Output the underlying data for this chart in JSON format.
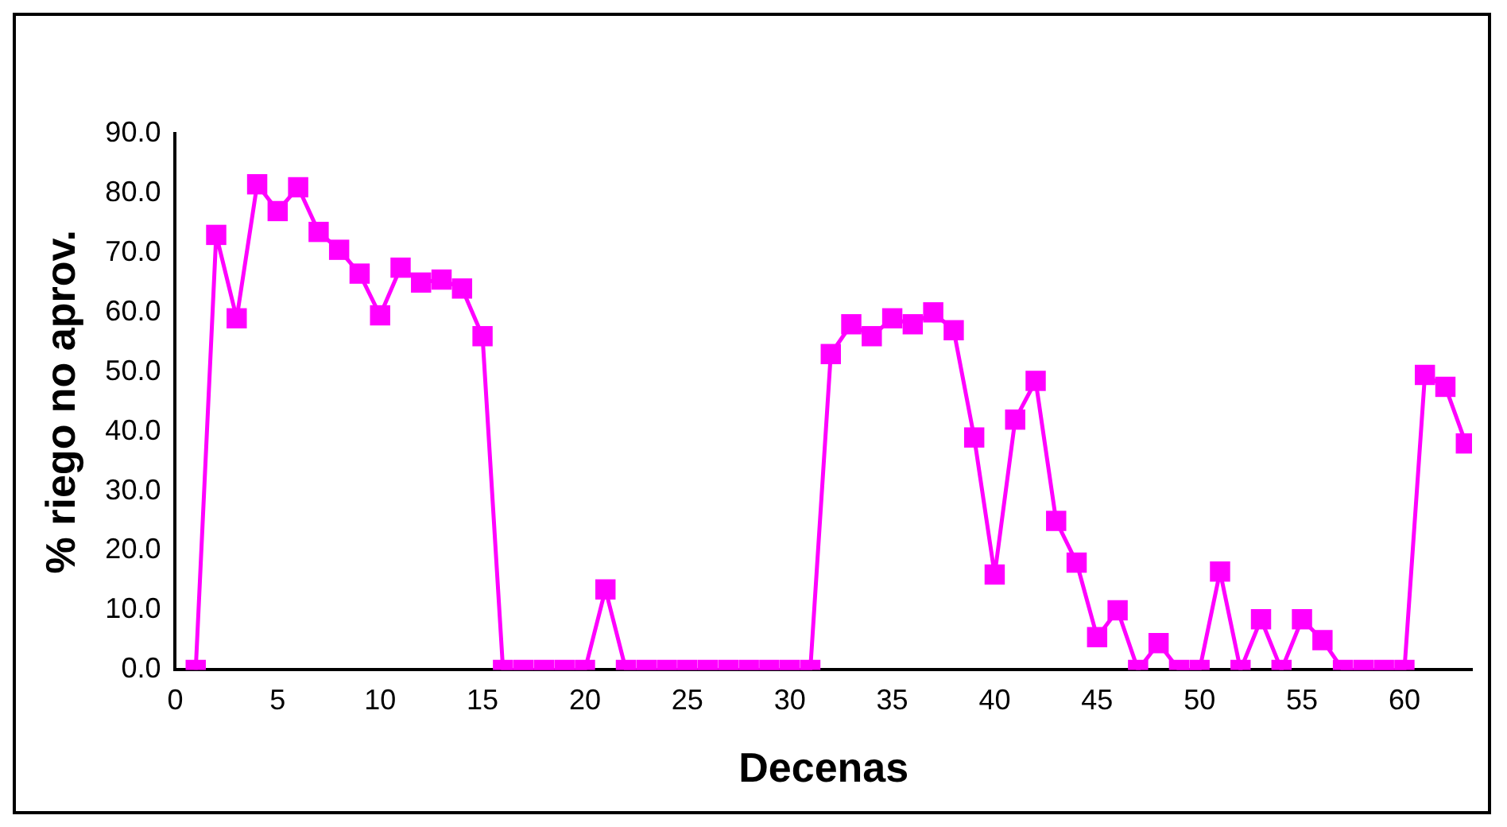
{
  "chart_data": {
    "type": "line",
    "xlabel": "Decenas",
    "ylabel": "% riego no aprov.",
    "x": [
      1,
      2,
      3,
      4,
      5,
      6,
      7,
      8,
      9,
      10,
      11,
      12,
      13,
      14,
      15,
      16,
      17,
      18,
      19,
      20,
      21,
      22,
      23,
      24,
      25,
      26,
      27,
      28,
      29,
      30,
      31,
      32,
      33,
      34,
      35,
      36,
      37,
      38,
      39,
      40,
      41,
      42,
      43,
      44,
      45,
      46,
      47,
      48,
      49,
      50,
      51,
      52,
      53,
      54,
      55,
      56,
      57,
      58,
      59,
      60,
      61,
      62,
      63
    ],
    "series": [
      {
        "color": "#ff00ff",
        "values": [
          0,
          73,
          59,
          81.5,
          77,
          81,
          73.5,
          70.5,
          66.5,
          59.5,
          67.5,
          65,
          65.5,
          64,
          56,
          0,
          0,
          0,
          0,
          0,
          13.5,
          0,
          0,
          0,
          0,
          0,
          0,
          0,
          0,
          0,
          0,
          53,
          58,
          56,
          59,
          58,
          60,
          57,
          39,
          16,
          42,
          48.5,
          25,
          18,
          5.5,
          10,
          0,
          4.5,
          0,
          0,
          16.5,
          0,
          8.5,
          0,
          8.5,
          5,
          0,
          0,
          0,
          0,
          49.5,
          47.5,
          38
        ]
      }
    ],
    "xlim": [
      0,
      63.3
    ],
    "xticks": [
      0,
      5,
      10,
      15,
      20,
      25,
      30,
      35,
      40,
      45,
      50,
      55,
      60
    ],
    "ylim": [
      0,
      90
    ],
    "yticks": [
      {
        "value": 0,
        "label": "0.0"
      },
      {
        "value": 10,
        "label": "10.0"
      },
      {
        "value": 20,
        "label": "20.0"
      },
      {
        "value": 30,
        "label": "30.0"
      },
      {
        "value": 40,
        "label": "40.0"
      },
      {
        "value": 50,
        "label": "50.0"
      },
      {
        "value": 60,
        "label": "60.0"
      },
      {
        "value": 70,
        "label": "70.0"
      },
      {
        "value": 80,
        "label": "80.0"
      },
      {
        "value": 90,
        "label": "90.0"
      }
    ],
    "grid": false,
    "legend": false,
    "marker": "square",
    "line_style": "solid"
  }
}
